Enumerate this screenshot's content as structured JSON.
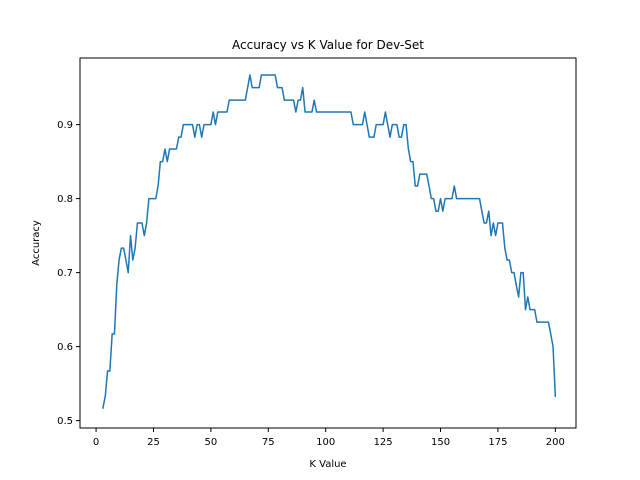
{
  "chart_data": {
    "type": "line",
    "title": "Accuracy vs K Value for Dev-Set",
    "xlabel": "K Value",
    "ylabel": "Accuracy",
    "xlim": [
      -7,
      209
    ],
    "ylim": [
      0.49,
      0.99
    ],
    "xticks": [
      0,
      25,
      50,
      75,
      100,
      125,
      150,
      175,
      200
    ],
    "yticks": [
      0.5,
      0.6,
      0.7,
      0.8,
      0.9
    ],
    "ytick_labels": [
      "0.5",
      "0.6",
      "0.7",
      "0.8",
      "0.9"
    ],
    "grid": false,
    "legend": "none",
    "series": [
      {
        "color": "#1f77b4",
        "points": [
          [
            3,
            0.517
          ],
          [
            4,
            0.533
          ],
          [
            5,
            0.567
          ],
          [
            6,
            0.567
          ],
          [
            7,
            0.617
          ],
          [
            8,
            0.617
          ],
          [
            9,
            0.683
          ],
          [
            10,
            0.717
          ],
          [
            11,
            0.733
          ],
          [
            12,
            0.733
          ],
          [
            13,
            0.717
          ],
          [
            14,
            0.7
          ],
          [
            15,
            0.75
          ],
          [
            16,
            0.717
          ],
          [
            17,
            0.733
          ],
          [
            18,
            0.767
          ],
          [
            19,
            0.767
          ],
          [
            20,
            0.767
          ],
          [
            21,
            0.75
          ],
          [
            22,
            0.767
          ],
          [
            23,
            0.8
          ],
          [
            24,
            0.8
          ],
          [
            25,
            0.8
          ],
          [
            26,
            0.8
          ],
          [
            27,
            0.817
          ],
          [
            28,
            0.85
          ],
          [
            29,
            0.85
          ],
          [
            30,
            0.867
          ],
          [
            31,
            0.85
          ],
          [
            32,
            0.867
          ],
          [
            33,
            0.867
          ],
          [
            34,
            0.867
          ],
          [
            35,
            0.867
          ],
          [
            36,
            0.883
          ],
          [
            37,
            0.883
          ],
          [
            38,
            0.9
          ],
          [
            39,
            0.9
          ],
          [
            40,
            0.9
          ],
          [
            41,
            0.9
          ],
          [
            42,
            0.9
          ],
          [
            43,
            0.883
          ],
          [
            44,
            0.9
          ],
          [
            45,
            0.9
          ],
          [
            46,
            0.883
          ],
          [
            47,
            0.9
          ],
          [
            48,
            0.9
          ],
          [
            49,
            0.9
          ],
          [
            50,
            0.9
          ],
          [
            51,
            0.917
          ],
          [
            52,
            0.9
          ],
          [
            53,
            0.917
          ],
          [
            54,
            0.917
          ],
          [
            55,
            0.917
          ],
          [
            56,
            0.917
          ],
          [
            57,
            0.917
          ],
          [
            58,
            0.933
          ],
          [
            59,
            0.933
          ],
          [
            60,
            0.933
          ],
          [
            61,
            0.933
          ],
          [
            62,
            0.933
          ],
          [
            63,
            0.933
          ],
          [
            64,
            0.933
          ],
          [
            65,
            0.933
          ],
          [
            66,
            0.95
          ],
          [
            67,
            0.967
          ],
          [
            68,
            0.95
          ],
          [
            69,
            0.95
          ],
          [
            70,
            0.95
          ],
          [
            71,
            0.95
          ],
          [
            72,
            0.967
          ],
          [
            73,
            0.967
          ],
          [
            74,
            0.967
          ],
          [
            75,
            0.967
          ],
          [
            76,
            0.967
          ],
          [
            77,
            0.967
          ],
          [
            78,
            0.967
          ],
          [
            79,
            0.95
          ],
          [
            80,
            0.95
          ],
          [
            81,
            0.95
          ],
          [
            82,
            0.933
          ],
          [
            83,
            0.933
          ],
          [
            84,
            0.933
          ],
          [
            85,
            0.933
          ],
          [
            86,
            0.933
          ],
          [
            87,
            0.917
          ],
          [
            88,
            0.933
          ],
          [
            89,
            0.933
          ],
          [
            90,
            0.95
          ],
          [
            91,
            0.917
          ],
          [
            92,
            0.917
          ],
          [
            93,
            0.917
          ],
          [
            94,
            0.917
          ],
          [
            95,
            0.933
          ],
          [
            96,
            0.917
          ],
          [
            97,
            0.917
          ],
          [
            98,
            0.917
          ],
          [
            99,
            0.917
          ],
          [
            100,
            0.917
          ],
          [
            101,
            0.917
          ],
          [
            102,
            0.917
          ],
          [
            103,
            0.917
          ],
          [
            104,
            0.917
          ],
          [
            105,
            0.917
          ],
          [
            106,
            0.917
          ],
          [
            107,
            0.917
          ],
          [
            108,
            0.917
          ],
          [
            109,
            0.917
          ],
          [
            110,
            0.917
          ],
          [
            111,
            0.917
          ],
          [
            112,
            0.9
          ],
          [
            113,
            0.9
          ],
          [
            114,
            0.9
          ],
          [
            115,
            0.9
          ],
          [
            116,
            0.9
          ],
          [
            117,
            0.917
          ],
          [
            118,
            0.9
          ],
          [
            119,
            0.883
          ],
          [
            120,
            0.883
          ],
          [
            121,
            0.883
          ],
          [
            122,
            0.9
          ],
          [
            123,
            0.9
          ],
          [
            124,
            0.9
          ],
          [
            125,
            0.9
          ],
          [
            126,
            0.917
          ],
          [
            127,
            0.9
          ],
          [
            128,
            0.883
          ],
          [
            129,
            0.9
          ],
          [
            130,
            0.9
          ],
          [
            131,
            0.9
          ],
          [
            132,
            0.883
          ],
          [
            133,
            0.883
          ],
          [
            134,
            0.9
          ],
          [
            135,
            0.9
          ],
          [
            136,
            0.867
          ],
          [
            137,
            0.85
          ],
          [
            138,
            0.85
          ],
          [
            139,
            0.817
          ],
          [
            140,
            0.817
          ],
          [
            141,
            0.833
          ],
          [
            142,
            0.833
          ],
          [
            143,
            0.833
          ],
          [
            144,
            0.833
          ],
          [
            145,
            0.817
          ],
          [
            146,
            0.8
          ],
          [
            147,
            0.8
          ],
          [
            148,
            0.783
          ],
          [
            149,
            0.783
          ],
          [
            150,
            0.8
          ],
          [
            151,
            0.783
          ],
          [
            152,
            0.8
          ],
          [
            153,
            0.8
          ],
          [
            154,
            0.8
          ],
          [
            155,
            0.8
          ],
          [
            156,
            0.817
          ],
          [
            157,
            0.8
          ],
          [
            158,
            0.8
          ],
          [
            159,
            0.8
          ],
          [
            160,
            0.8
          ],
          [
            161,
            0.8
          ],
          [
            162,
            0.8
          ],
          [
            163,
            0.8
          ],
          [
            164,
            0.8
          ],
          [
            165,
            0.8
          ],
          [
            166,
            0.8
          ],
          [
            167,
            0.8
          ],
          [
            168,
            0.783
          ],
          [
            169,
            0.767
          ],
          [
            170,
            0.767
          ],
          [
            171,
            0.783
          ],
          [
            172,
            0.75
          ],
          [
            173,
            0.767
          ],
          [
            174,
            0.75
          ],
          [
            175,
            0.767
          ],
          [
            176,
            0.767
          ],
          [
            177,
            0.767
          ],
          [
            178,
            0.733
          ],
          [
            179,
            0.717
          ],
          [
            180,
            0.717
          ],
          [
            181,
            0.7
          ],
          [
            182,
            0.7
          ],
          [
            183,
            0.683
          ],
          [
            184,
            0.667
          ],
          [
            185,
            0.7
          ],
          [
            186,
            0.7
          ],
          [
            187,
            0.65
          ],
          [
            188,
            0.667
          ],
          [
            189,
            0.65
          ],
          [
            190,
            0.65
          ],
          [
            191,
            0.65
          ],
          [
            192,
            0.633
          ],
          [
            193,
            0.633
          ],
          [
            194,
            0.633
          ],
          [
            195,
            0.633
          ],
          [
            196,
            0.633
          ],
          [
            197,
            0.633
          ],
          [
            198,
            0.617
          ],
          [
            199,
            0.6
          ],
          [
            200,
            0.533
          ]
        ]
      }
    ]
  }
}
